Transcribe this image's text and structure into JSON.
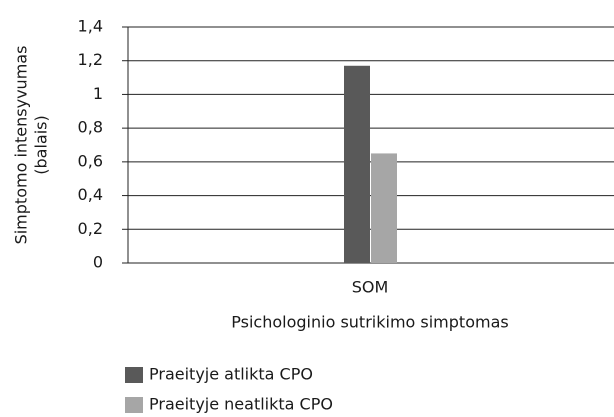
{
  "chart_data": {
    "type": "bar",
    "categories": [
      "SOM"
    ],
    "series": [
      {
        "name": "Praeityje atlikta CPO",
        "color": "#595959",
        "values": [
          1.17
        ]
      },
      {
        "name": "Praeityje neatlikta CPO",
        "color": "#a6a6a6",
        "values": [
          0.65
        ]
      }
    ],
    "ylim": [
      0,
      1.4
    ],
    "yticks": [
      0,
      {
        "value": 0.2,
        "label": "0,2"
      },
      {
        "value": 0.4,
        "label": "0,4"
      },
      {
        "value": 0.6,
        "label": "0,6"
      },
      {
        "value": 0.8,
        "label": "0,8"
      },
      1,
      {
        "value": 1.2,
        "label": "1,2"
      },
      {
        "value": 1.4,
        "label": "1,4"
      }
    ],
    "grid": true,
    "x_label": "Psichologinio sutrikimo simptomas",
    "y_label": [
      "Simptomo intensyvumas",
      "(balais)"
    ],
    "legend": "bottom"
  }
}
